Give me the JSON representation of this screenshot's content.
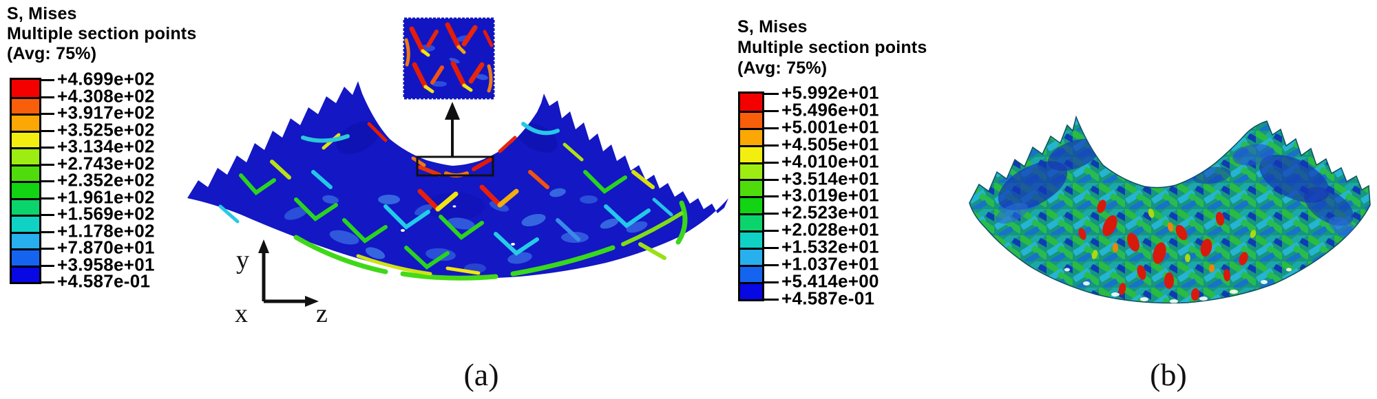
{
  "figure": {
    "background": "#ffffff",
    "captions": {
      "a": "(a)",
      "b": "(b)"
    }
  },
  "axis_triad": {
    "x": "x",
    "y": "y",
    "z": "z"
  },
  "legends": {
    "a": {
      "title_lines": [
        "S, Mises",
        "Multiple section points",
        "(Avg: 75%)"
      ],
      "values": [
        "+4.699e+02",
        "+4.308e+02",
        "+3.917e+02",
        "+3.525e+02",
        "+3.134e+02",
        "+2.743e+02",
        "+2.352e+02",
        "+1.961e+02",
        "+1.569e+02",
        "+1.178e+02",
        "+7.870e+01",
        "+3.958e+01",
        "+4.587e-01"
      ],
      "band_colors": [
        "#f40000",
        "#f95f0a",
        "#fba805",
        "#f2ef10",
        "#9ded12",
        "#50dc0c",
        "#12d412",
        "#0cd46c",
        "#10d2c4",
        "#28b0ee",
        "#1464f0",
        "#0808e4"
      ]
    },
    "b": {
      "title_lines": [
        "S, Mises",
        "Multiple section points",
        "(Avg: 75%)"
      ],
      "values": [
        "+5.992e+01",
        "+5.496e+01",
        "+5.001e+01",
        "+4.505e+01",
        "+4.010e+01",
        "+3.514e+01",
        "+3.019e+01",
        "+2.523e+01",
        "+2.028e+01",
        "+1.532e+01",
        "+1.037e+01",
        "+5.414e+00",
        "+4.587e-01"
      ],
      "band_colors": [
        "#f40000",
        "#f95f0a",
        "#fba805",
        "#f2ef10",
        "#9ded12",
        "#50dc0c",
        "#12d412",
        "#0cd46c",
        "#10d2c4",
        "#28b0ee",
        "#1464f0",
        "#0808e4"
      ]
    }
  },
  "chart_data": [
    {
      "type": "heatmap",
      "title": "S, Mises",
      "subtitle": "Multiple section points (Avg: 75%)",
      "caption": "(a)",
      "legend_labels": [
        "+4.699e+02",
        "+4.308e+02",
        "+3.917e+02",
        "+3.525e+02",
        "+3.134e+02",
        "+2.743e+02",
        "+2.352e+02",
        "+1.961e+02",
        "+1.569e+02",
        "+1.178e+02",
        "+7.870e+01",
        "+3.958e+01",
        "+4.587e-01"
      ],
      "legend_levels": [
        469.9,
        430.8,
        391.7,
        352.5,
        313.4,
        274.3,
        235.2,
        196.1,
        156.9,
        117.8,
        78.7,
        39.58,
        0.4587
      ],
      "colormap": [
        "#f40000",
        "#f95f0a",
        "#fba805",
        "#f2ef10",
        "#9ded12",
        "#50dc0c",
        "#12d412",
        "#0cd46c",
        "#10d2c4",
        "#28b0ee",
        "#1464f0",
        "#0808e4"
      ],
      "legend_position": "left",
      "annotations": [
        "zoom inset with ROI rectangle and upward arrow",
        "axis triad x-y-z"
      ]
    },
    {
      "type": "heatmap",
      "title": "S, Mises",
      "subtitle": "Multiple section points (Avg: 75%)",
      "caption": "(b)",
      "legend_labels": [
        "+5.992e+01",
        "+5.496e+01",
        "+5.001e+01",
        "+4.505e+01",
        "+4.010e+01",
        "+3.514e+01",
        "+3.019e+01",
        "+2.523e+01",
        "+2.028e+01",
        "+1.532e+01",
        "+1.037e+01",
        "+5.414e+00",
        "+4.587e-01"
      ],
      "legend_levels": [
        59.92,
        54.96,
        50.01,
        45.05,
        40.1,
        35.14,
        30.19,
        25.23,
        20.28,
        15.32,
        10.37,
        5.414,
        0.4587
      ],
      "colormap": [
        "#f40000",
        "#f95f0a",
        "#fba805",
        "#f2ef10",
        "#9ded12",
        "#50dc0c",
        "#12d412",
        "#0cd46c",
        "#10d2c4",
        "#28b0ee",
        "#1464f0",
        "#0808e4"
      ],
      "legend_position": "left"
    }
  ]
}
